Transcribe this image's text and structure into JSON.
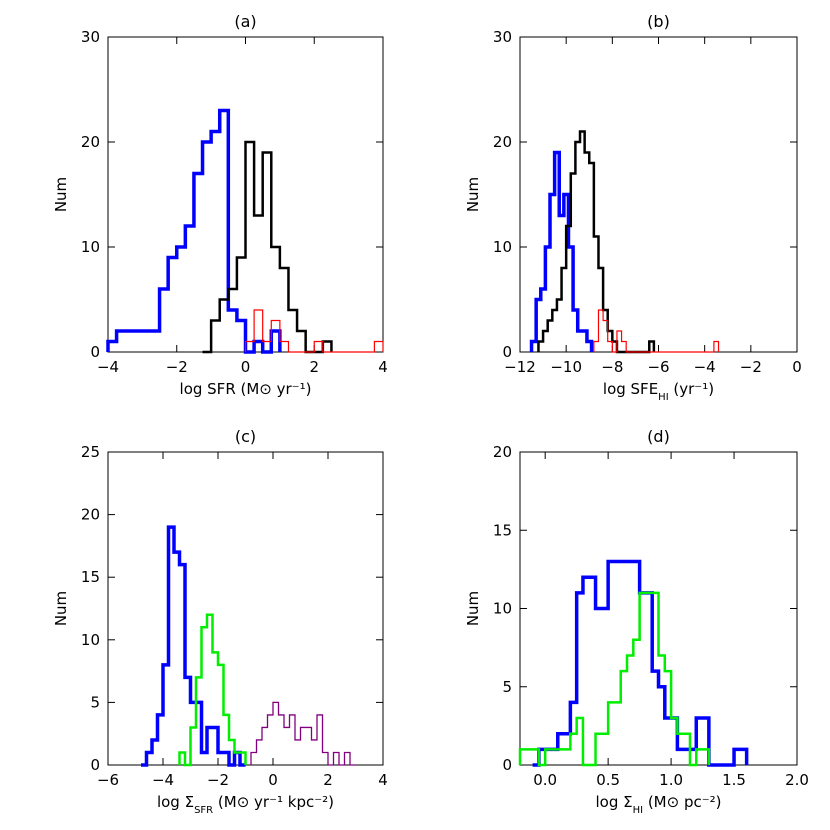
{
  "chart_data": [
    {
      "type": "histogram",
      "title": "(a)",
      "xlabel": "log SFR (M⊙ yr⁻¹)",
      "ylabel": "Num",
      "xlim": [
        -4,
        4
      ],
      "ylim": [
        0,
        30
      ],
      "xticks": [
        -4,
        -2,
        0,
        2,
        4
      ],
      "yticks": [
        0,
        10,
        20,
        30
      ],
      "series": [
        {
          "color": "#0000ff",
          "width": 3.5,
          "x": [
            -4.0,
            -3.75,
            -3.5,
            -3.25,
            -3.0,
            -2.75,
            -2.5,
            -2.25,
            -2.0,
            -1.75,
            -1.5,
            -1.25,
            -1.0,
            -0.75,
            -0.5,
            -0.25,
            0.0,
            0.25,
            0.5,
            0.75,
            1.0
          ],
          "y": [
            1,
            2,
            2,
            2,
            2,
            2,
            6,
            9,
            10,
            12,
            17,
            20,
            21,
            23,
            4,
            3,
            0,
            1,
            0,
            2,
            0
          ]
        },
        {
          "color": "#000000",
          "width": 2.5,
          "x": [
            -1.25,
            -1.0,
            -0.75,
            -0.5,
            -0.25,
            0.0,
            0.25,
            0.5,
            0.75,
            1.0,
            1.25,
            1.5,
            1.75,
            2.0,
            2.25,
            2.5
          ],
          "y": [
            0,
            3,
            5,
            6,
            9,
            20,
            13,
            19,
            10,
            8,
            4,
            2,
            0,
            0,
            1,
            0
          ]
        },
        {
          "color": "#ff0000",
          "width": 1.2,
          "x": [
            0.0,
            0.25,
            0.5,
            0.75,
            1.0,
            1.25,
            1.5,
            1.75,
            2.0,
            2.25,
            2.5,
            2.75,
            3.0,
            3.25,
            3.5,
            3.75,
            4.0
          ],
          "y": [
            1,
            4,
            1,
            3,
            1,
            0,
            0,
            0,
            1,
            0,
            0,
            0,
            0,
            0,
            0,
            1,
            0
          ]
        }
      ]
    },
    {
      "type": "histogram",
      "title": "(b)",
      "xlabel": "log SFE_HI (yr⁻¹)",
      "ylabel": "Num",
      "xlim": [
        -12,
        0
      ],
      "ylim": [
        0,
        30
      ],
      "xticks": [
        -12,
        -10,
        -8,
        -6,
        -4,
        -2,
        0
      ],
      "yticks": [
        0,
        10,
        20,
        30
      ],
      "series": [
        {
          "color": "#0000ff",
          "width": 3.5,
          "x": [
            -11.5,
            -11.3,
            -11.1,
            -10.9,
            -10.7,
            -10.5,
            -10.3,
            -10.1,
            -9.9,
            -9.7,
            -9.5,
            -9.3,
            -9.1,
            -8.9
          ],
          "y": [
            1,
            5,
            6,
            10,
            15,
            19,
            13,
            15,
            10,
            4,
            2,
            2,
            1,
            0
          ]
        },
        {
          "color": "#000000",
          "width": 2.5,
          "x": [
            -11.2,
            -11.0,
            -10.8,
            -10.6,
            -10.4,
            -10.2,
            -10.0,
            -9.8,
            -9.6,
            -9.4,
            -9.2,
            -9.0,
            -8.8,
            -8.6,
            -8.4,
            -8.2,
            -8.0,
            -7.8,
            -7.6,
            -7.4,
            -7.2,
            -7.0,
            -6.8,
            -6.6,
            -6.4,
            -6.2
          ],
          "y": [
            1,
            2,
            3,
            4,
            5,
            8,
            12,
            17,
            20,
            21,
            19,
            18,
            11,
            8,
            4,
            2,
            1,
            0,
            0,
            0,
            0,
            0,
            0,
            0,
            1,
            0
          ]
        },
        {
          "color": "#ff0000",
          "width": 1.2,
          "x": [
            -8.8,
            -8.6,
            -8.4,
            -8.2,
            -8.0,
            -7.8,
            -7.6,
            -7.4,
            -7.2,
            -7.0,
            -6.8,
            -6.6,
            -6.4,
            -6.2,
            -6.0,
            -5.8,
            -5.6,
            -5.4,
            -5.2,
            -5.0,
            -4.8,
            -4.6,
            -4.4,
            -4.2,
            -4.0,
            -3.8,
            -3.6,
            -3.4
          ],
          "y": [
            1,
            4,
            3,
            1,
            0,
            2,
            1,
            0,
            0,
            0,
            0,
            0,
            0,
            0,
            0,
            0,
            0,
            0,
            0,
            0,
            0,
            0,
            0,
            0,
            0,
            0,
            1,
            0
          ]
        }
      ]
    },
    {
      "type": "histogram",
      "title": "(c)",
      "xlabel": "log Σ_SFR (M⊙ yr⁻¹ kpc⁻²)",
      "ylabel": "Num",
      "xlim": [
        -6,
        4
      ],
      "ylim": [
        0,
        25
      ],
      "xticks": [
        -6,
        -4,
        -2,
        0,
        2,
        4
      ],
      "yticks": [
        0,
        5,
        10,
        15,
        20,
        25
      ],
      "series": [
        {
          "color": "#0000ff",
          "width": 3.5,
          "x": [
            -4.8,
            -4.6,
            -4.4,
            -4.2,
            -4.0,
            -3.8,
            -3.6,
            -3.4,
            -3.2,
            -3.0,
            -2.8,
            -2.6,
            -2.4,
            -2.2,
            -2.0,
            -1.8,
            -1.6,
            -1.4,
            -1.2,
            -1.0
          ],
          "y": [
            0,
            1,
            2,
            4,
            8,
            19,
            17,
            16,
            7,
            5,
            5,
            1,
            3,
            3,
            1,
            1,
            0,
            1,
            0,
            0
          ]
        },
        {
          "color": "#00ee00",
          "width": 2.5,
          "x": [
            -3.4,
            -3.2,
            -3.0,
            -2.8,
            -2.6,
            -2.4,
            -2.2,
            -2.0,
            -1.8,
            -1.6,
            -1.4,
            -1.2,
            -1.0
          ],
          "y": [
            1,
            0,
            3,
            7,
            11,
            12,
            9,
            8,
            4,
            2,
            1,
            1,
            0
          ]
        },
        {
          "color": "#800080",
          "width": 1.3,
          "x": [
            -0.8,
            -0.6,
            -0.4,
            -0.2,
            0.0,
            0.2,
            0.4,
            0.6,
            0.8,
            1.0,
            1.2,
            1.4,
            1.6,
            1.8,
            2.0,
            2.2,
            2.4,
            2.6,
            2.8,
            3.0
          ],
          "y": [
            1,
            2,
            3,
            4,
            5,
            4,
            3,
            4,
            2,
            3,
            3,
            2,
            4,
            1,
            0,
            1,
            0,
            1,
            0,
            0
          ]
        }
      ]
    },
    {
      "type": "histogram",
      "title": "(d)",
      "xlabel": "log Σ_HI (M⊙ pc⁻²)",
      "ylabel": "Num",
      "xlim": [
        -0.2,
        2.0
      ],
      "ylim": [
        0,
        20
      ],
      "xticks": [
        0.0,
        0.5,
        1.0,
        1.5,
        2.0
      ],
      "xtick_labels": [
        "0.0",
        "0.5",
        "1.0",
        "1.5",
        "2.0"
      ],
      "yticks": [
        0,
        5,
        10,
        15,
        20
      ],
      "series": [
        {
          "color": "#0000ff",
          "width": 3.5,
          "x": [
            -0.1,
            -0.05,
            0.0,
            0.05,
            0.1,
            0.15,
            0.2,
            0.25,
            0.3,
            0.35,
            0.4,
            0.45,
            0.5,
            0.55,
            0.6,
            0.65,
            0.7,
            0.75,
            0.8,
            0.85,
            0.9,
            0.95,
            1.0,
            1.05,
            1.1,
            1.15,
            1.2,
            1.25,
            1.3,
            1.35,
            1.4,
            1.45,
            1.5,
            1.55,
            1.6
          ],
          "y": [
            0,
            1,
            1,
            1,
            2,
            2,
            4,
            11,
            12,
            12,
            10,
            10,
            13,
            13,
            13,
            13,
            13,
            11,
            11,
            6,
            5,
            3,
            3,
            1,
            1,
            1,
            3,
            3,
            0,
            0,
            0,
            0,
            1,
            1,
            0
          ]
        },
        {
          "color": "#00ee00",
          "width": 2.5,
          "x": [
            -0.2,
            -0.15,
            -0.1,
            -0.05,
            0.0,
            0.05,
            0.1,
            0.15,
            0.2,
            0.25,
            0.3,
            0.35,
            0.4,
            0.45,
            0.5,
            0.55,
            0.6,
            0.65,
            0.7,
            0.75,
            0.8,
            0.85,
            0.9,
            0.95,
            1.0,
            1.05,
            1.1,
            1.15,
            1.2,
            1.25,
            1.3
          ],
          "y": [
            1,
            1,
            1,
            0,
            1,
            1,
            1,
            1,
            2,
            3,
            0,
            0,
            2,
            2,
            4,
            4,
            6,
            7,
            8,
            11,
            11,
            11,
            7,
            6,
            3,
            2,
            2,
            0,
            1,
            1,
            0
          ]
        }
      ]
    }
  ]
}
